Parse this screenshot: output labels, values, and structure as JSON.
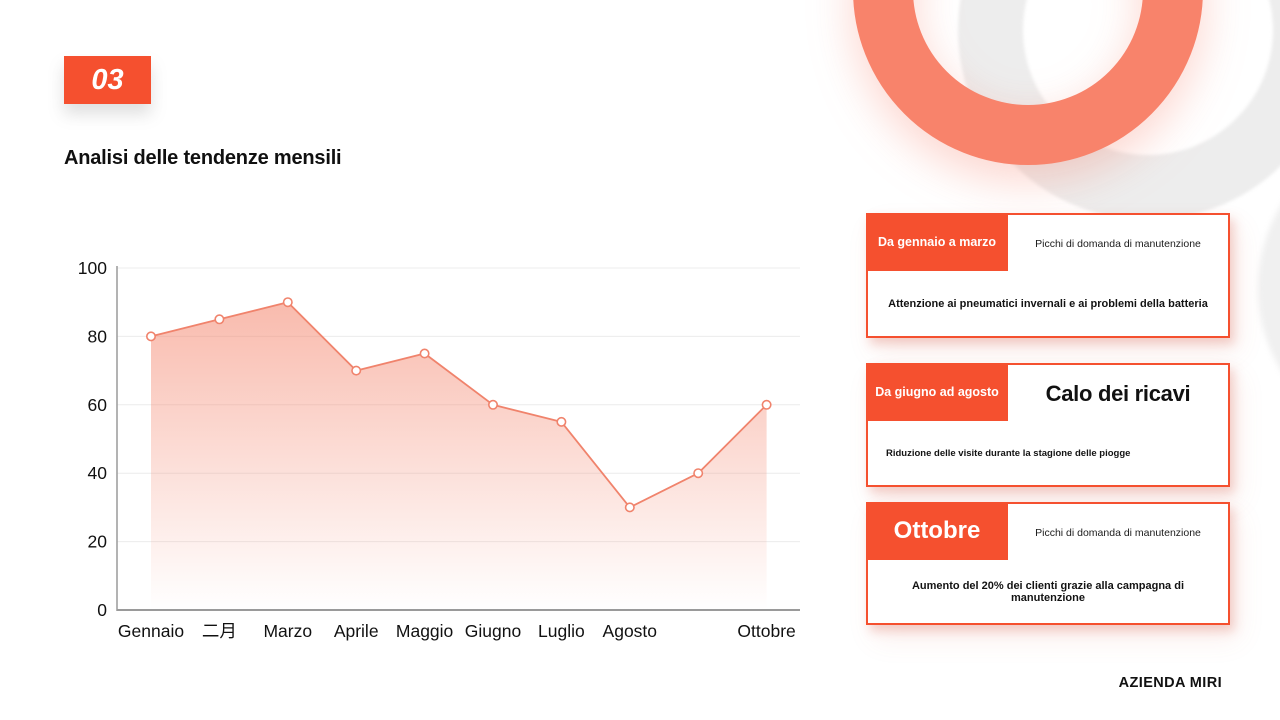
{
  "slide": {
    "section_number": "03",
    "title": "Analisi delle tendenze mensili",
    "footer": "AZIENDA MIRI"
  },
  "chart_data": {
    "type": "area",
    "categories": [
      "Gennaio",
      "二月",
      "Marzo",
      "Aprile",
      "Maggio",
      "Giugno",
      "Luglio",
      "Agosto",
      "",
      "Ottobre"
    ],
    "values": [
      80,
      85,
      90,
      70,
      75,
      60,
      55,
      30,
      40,
      60
    ],
    "title": "",
    "xlabel": "",
    "ylabel": "",
    "ylim": [
      0,
      100
    ],
    "yticks": [
      0,
      20,
      40,
      60,
      80,
      100
    ],
    "grid": true,
    "legend": false,
    "line_color": "#f0836c",
    "marker_fill": "#ffffff",
    "area_gradient_top": "rgba(243,124,98,0.52)",
    "area_gradient_bottom": "rgba(243,124,98,0)",
    "grid_color": "#ececec",
    "axis_color": "#9a9a9a",
    "label_color": "#111111"
  },
  "cards": [
    {
      "tag": "Da gennaio a marzo",
      "headline": "Picchi di domanda di manutenzione",
      "body": "Attenzione ai pneumatici invernali e ai problemi della batteria"
    },
    {
      "tag": "Da giugno ad agosto",
      "headline": "Calo dei ricavi",
      "body": "Riduzione delle visite durante la stagione delle piogge"
    },
    {
      "tag": "Ottobre",
      "headline": "Picchi di domanda di manutenzione",
      "body": "Aumento del 20% dei clienti grazie alla campagna di manutenzione"
    }
  ],
  "colors": {
    "accent": "#f5502f",
    "salmon": "#f8836b",
    "ring_gray": "#ededed",
    "ring_gray2": "#f0f0f0",
    "chart_line": "#f0836c",
    "text": "#111111"
  }
}
